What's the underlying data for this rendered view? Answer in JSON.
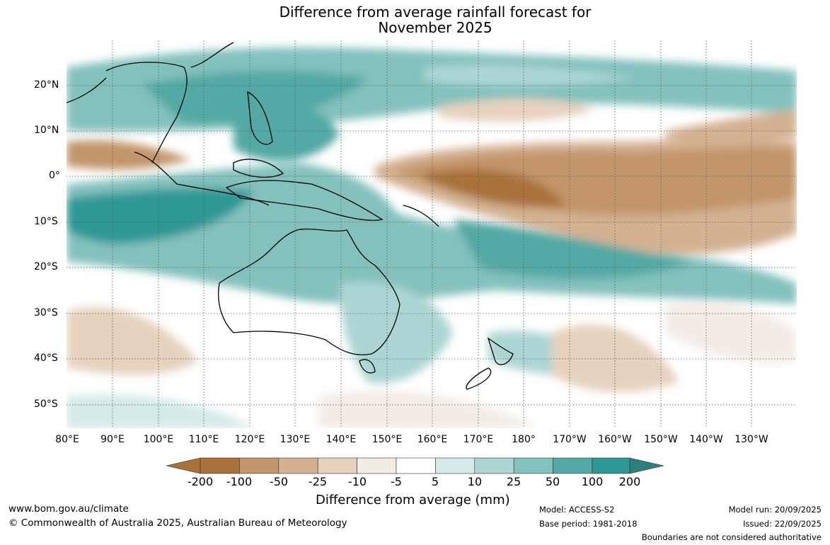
{
  "title_line1": "Difference from average rainfall forecast for",
  "title_line2": "November 2025",
  "lat_labels": [
    "20°N",
    "10°N",
    "0°",
    "10°S",
    "20°S",
    "30°S",
    "40°S",
    "50°S"
  ],
  "lon_labels": [
    "80°E",
    "90°E",
    "100°E",
    "110°E",
    "120°E",
    "130°E",
    "140°E",
    "150°E",
    "160°E",
    "170°E",
    "180°",
    "170°W",
    "160°W",
    "150°W",
    "140°W",
    "130°W"
  ],
  "colorbar": {
    "labels": [
      "-200",
      "-100",
      "-50",
      "-25",
      "-10",
      "-5",
      "5",
      "10",
      "25",
      "50",
      "100",
      "200"
    ],
    "colors": [
      "#a9723b",
      "#a9723b",
      "#c2956a",
      "#d3b191",
      "#e6d2bd",
      "#f3ece5",
      "#ffffff",
      "#d4eae8",
      "#acd6d3",
      "#83c1bd",
      "#53a9a5",
      "#2e9895",
      "#2c7f7d"
    ],
    "title": "Difference from average (mm)"
  },
  "footer": {
    "url": "www.bom.gov.au/climate",
    "copyright": "© Commonwealth of Australia 2025, Australian Bureau of Meteorology",
    "model": "Model: ACCESS-S2",
    "base_period": "Base period: 1981-2018",
    "model_run": "Model run: 20/09/2025",
    "issued": "Issued: 22/09/2025",
    "disclaimer": "Boundaries are not considered authoritative"
  }
}
